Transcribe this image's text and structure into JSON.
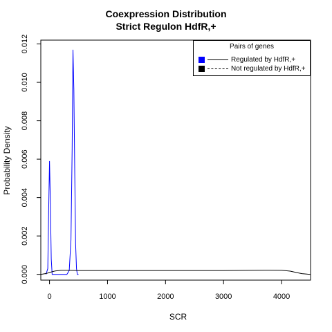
{
  "chart_data": {
    "type": "line",
    "title": "Coexpression Distribution",
    "subtitle": "Strict Regulon HdfR,+",
    "xlabel": "SCR",
    "ylabel": "Probability Density",
    "xlim": [
      -150,
      4500
    ],
    "ylim": [
      -0.0003,
      0.0122
    ],
    "x_ticks": [
      0,
      1000,
      2000,
      3000,
      4000
    ],
    "x_tick_labels": [
      "0",
      "1000",
      "2000",
      "3000",
      "4000"
    ],
    "y_ticks": [
      0.0,
      0.002,
      0.004,
      0.006,
      0.008,
      0.01,
      0.012
    ],
    "y_tick_labels": [
      "0.000",
      "0.002",
      "0.004",
      "0.006",
      "0.008",
      "0.010",
      "0.012"
    ],
    "grid": false,
    "legend": {
      "title": "Pairs of genes",
      "placement": "top-right",
      "entries": [
        "Regulated by  HdfR,+",
        "Not regulated by  HdfR,+"
      ]
    },
    "series": [
      {
        "name": "Regulated by  HdfR,+",
        "color": "#0000ff",
        "line_style": "solid",
        "x": [
          -60,
          -30,
          -15,
          0,
          15,
          30,
          45,
          60,
          100,
          200,
          300,
          340,
          370,
          390,
          405,
          420,
          435,
          450,
          465,
          480,
          500
        ],
        "y": [
          0.0,
          0.0003,
          0.0032,
          0.0059,
          0.0038,
          0.0008,
          0.0,
          0.0,
          0.0,
          0.0,
          0.0,
          0.0002,
          0.0018,
          0.0065,
          0.0117,
          0.0096,
          0.0052,
          0.0016,
          0.0003,
          0.0,
          0.0
        ]
      },
      {
        "name": "Not regulated by  HdfR,+",
        "color": "#000000",
        "line_style": "solid",
        "x": [
          -150,
          -50,
          0,
          100,
          200,
          300,
          500,
          1000,
          2000,
          3000,
          3500,
          3800,
          4000,
          4150,
          4250,
          4350,
          4450,
          4500
        ],
        "y": [
          0.0,
          5e-05,
          0.0001,
          0.00018,
          0.00021,
          0.00021,
          0.0002,
          0.0002,
          0.0002,
          0.0002,
          0.00021,
          0.00022,
          0.00021,
          0.00017,
          0.0001,
          4e-05,
          1e-05,
          0.0
        ]
      }
    ]
  }
}
